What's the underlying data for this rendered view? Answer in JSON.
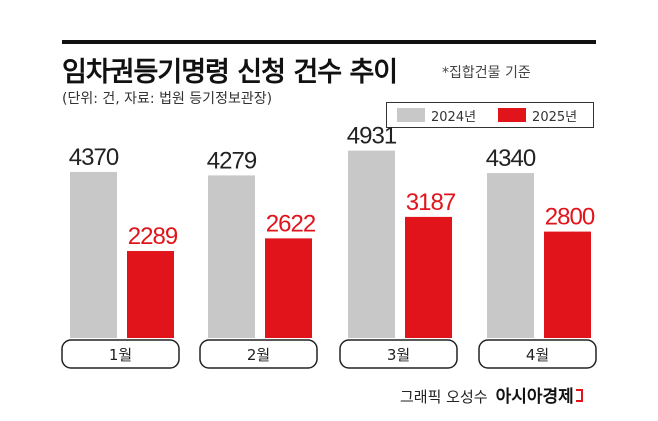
{
  "header": {
    "title": "임차권등기명령 신청 건수 추이",
    "note": "*집합건물 기준",
    "unit_source": "(단위: 건, 자료: 법원 등기정보관장)"
  },
  "legend": [
    {
      "label": "2024년",
      "color": "#c8c8c8"
    },
    {
      "label": "2025년",
      "color": "#e1141b"
    }
  ],
  "chart_data": {
    "type": "bar",
    "categories": [
      "1월",
      "2월",
      "3월",
      "4월"
    ],
    "series": [
      {
        "name": "2024년",
        "values": [
          4370,
          4279,
          4931,
          4340
        ],
        "color": "#c8c8c8"
      },
      {
        "name": "2025년",
        "values": [
          2289,
          2622,
          3187,
          2800
        ],
        "color": "#e1141b"
      }
    ],
    "title": "임차권등기명령 신청 건수 추이",
    "ylim": [
      0,
      5000
    ],
    "grid": false,
    "legend_position": "top-right"
  },
  "footer": {
    "credit": "그래픽 오성수",
    "brand": "아시아경제"
  }
}
